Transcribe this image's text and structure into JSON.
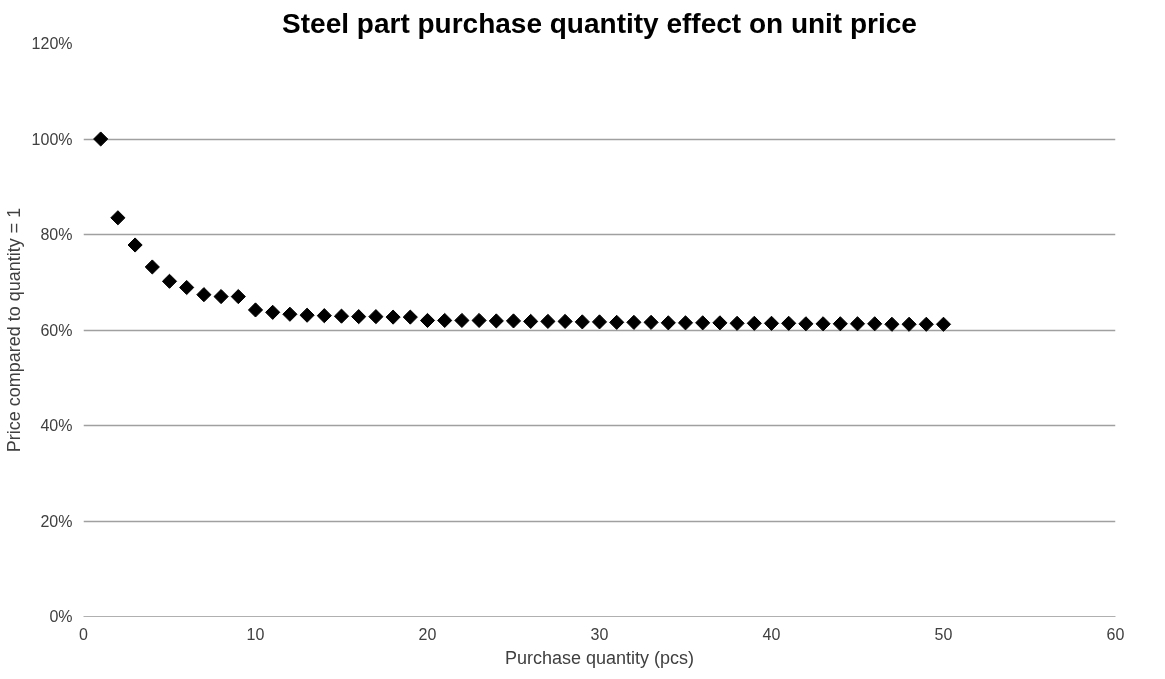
{
  "chart_data": {
    "type": "scatter",
    "title": "Steel part purchase quantity effect on unit price",
    "xlabel": "Purchase quantity (pcs)",
    "ylabel": "Price compared to quantity = 1",
    "x": [
      1,
      2,
      3,
      4,
      5,
      6,
      7,
      8,
      9,
      10,
      11,
      12,
      13,
      14,
      15,
      16,
      17,
      18,
      19,
      20,
      21,
      22,
      23,
      24,
      25,
      26,
      27,
      28,
      29,
      30,
      31,
      32,
      33,
      34,
      35,
      36,
      37,
      38,
      39,
      40,
      41,
      42,
      43,
      44,
      45,
      46,
      47,
      48,
      49,
      50
    ],
    "series": [
      {
        "color": "#000000",
        "values": [
          1.0,
          0.835,
          0.778,
          0.732,
          0.702,
          0.689,
          0.674,
          0.67,
          0.67,
          0.642,
          0.637,
          0.633,
          0.631,
          0.63,
          0.629,
          0.628,
          0.628,
          0.627,
          0.627,
          0.62,
          0.62,
          0.62,
          0.62,
          0.619,
          0.619,
          0.618,
          0.618,
          0.618,
          0.617,
          0.617,
          0.616,
          0.616,
          0.616,
          0.615,
          0.615,
          0.615,
          0.615,
          0.614,
          0.614,
          0.614,
          0.614,
          0.613,
          0.613,
          0.613,
          0.613,
          0.613,
          0.612,
          0.612,
          0.612,
          0.612
        ]
      }
    ],
    "xlim": [
      0,
      60
    ],
    "xticks": [
      0,
      10,
      20,
      30,
      40,
      50,
      60
    ],
    "ylim": [
      0,
      1.2
    ],
    "yticks": [
      {
        "value": 0,
        "label": "0%"
      },
      {
        "value": 0.2,
        "label": "20%"
      },
      {
        "value": 0.4,
        "label": "40%"
      },
      {
        "value": 0.6,
        "label": "60%"
      },
      {
        "value": 0.8,
        "label": "80%"
      },
      {
        "value": 1.0,
        "label": "100%"
      },
      {
        "value": 1.2,
        "label": "120%"
      }
    ],
    "grid": "y",
    "marker": "diamond"
  }
}
